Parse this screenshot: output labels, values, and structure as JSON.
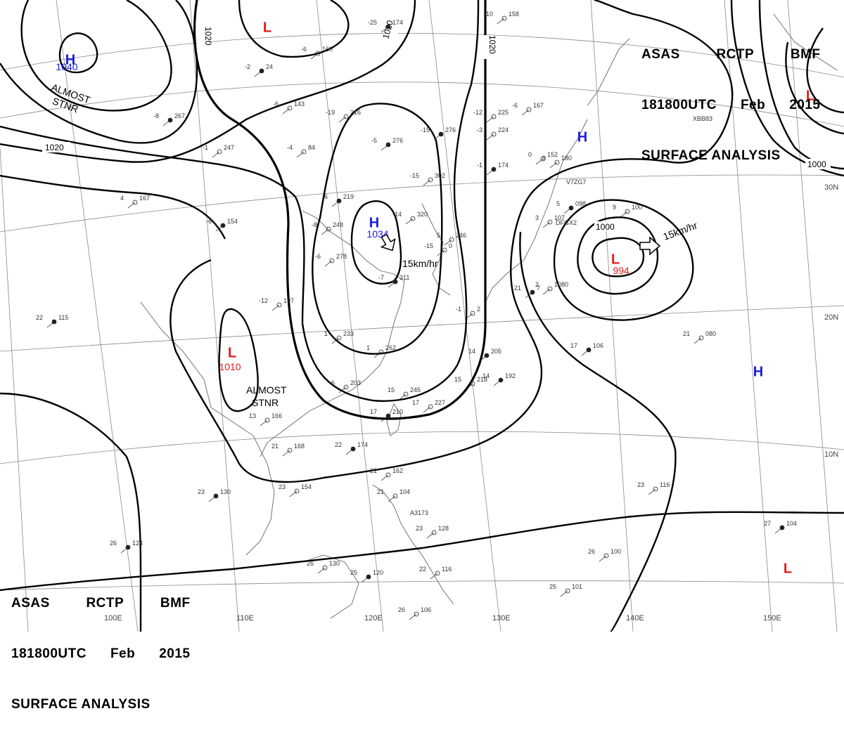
{
  "title": {
    "product": "ASAS",
    "station": "RCTP",
    "agency": "BMF",
    "valid_time": "181800UTC",
    "month": "Feb",
    "year": "2015",
    "analysis": "SURFACE ANALYSIS"
  },
  "colors": {
    "high": "#1a1ae6",
    "low": "#e61a1a",
    "isobar": "#000000",
    "grid": "#777777",
    "coast": "#555555"
  },
  "icons": {
    "high": "H-letter",
    "low": "L-letter",
    "motion": "hollow-arrow-icon"
  },
  "longitude_labels": [
    "100E",
    "110E",
    "120E",
    "130E",
    "140E",
    "150E"
  ],
  "latitude_labels": [
    "30N",
    "20N",
    "10N"
  ],
  "isobar_labels": [
    "1020",
    "1020",
    "1020",
    "1020",
    "1000",
    "1000"
  ],
  "centers": [
    {
      "type": "H",
      "label": "H",
      "pressure": "1040",
      "note": "ALMOST STNR"
    },
    {
      "type": "L",
      "label": "L",
      "pressure": ""
    },
    {
      "type": "H",
      "label": "H",
      "pressure": "1034",
      "motion": "15km/hr"
    },
    {
      "type": "L",
      "label": "L",
      "pressure": "1010",
      "note": "ALMOST STNR"
    },
    {
      "type": "H",
      "label": "H",
      "pressure": ""
    },
    {
      "type": "L",
      "label": "L",
      "pressure": "994",
      "motion": "15km/hr"
    },
    {
      "type": "L",
      "label": "L",
      "pressure": ""
    },
    {
      "type": "H",
      "label": "H",
      "pressure": ""
    },
    {
      "type": "L",
      "label": "L",
      "pressure": ""
    }
  ],
  "stations": [
    {
      "t": "-25",
      "p": "174"
    },
    {
      "t": "-10",
      "p": "158"
    },
    {
      "t": "-6",
      "p": "160"
    },
    {
      "t": "-2",
      "p": "24"
    },
    {
      "t": "-6",
      "p": "143"
    },
    {
      "t": "-19",
      "p": "216"
    },
    {
      "t": "-15",
      "p": "276"
    },
    {
      "t": "-12",
      "p": "225"
    },
    {
      "t": "-6",
      "p": "167"
    },
    {
      "t": "-8",
      "p": "267"
    },
    {
      "t": "-1",
      "p": "247"
    },
    {
      "t": "-4",
      "p": "84"
    },
    {
      "t": "-5",
      "p": "276"
    },
    {
      "t": "-3",
      "p": "224"
    },
    {
      "t": "0",
      "p": "152"
    },
    {
      "t": "-6",
      "p": "219"
    },
    {
      "t": "-15",
      "p": "302"
    },
    {
      "t": "-14",
      "p": "320"
    },
    {
      "t": "-1",
      "p": "174"
    },
    {
      "t": "9",
      "p": "180"
    },
    {
      "t": "-8",
      "p": "248"
    },
    {
      "t": "5",
      "p": "098"
    },
    {
      "t": "9",
      "p": "100"
    },
    {
      "t": "3",
      "p": "107"
    },
    {
      "t": "-6",
      "p": "154"
    },
    {
      "t": "4",
      "p": "167"
    },
    {
      "t": "-6",
      "p": "278"
    },
    {
      "t": "-7",
      "p": "311"
    },
    {
      "t": "5",
      "p": "246"
    },
    {
      "t": "-15",
      "p": "0"
    },
    {
      "t": "21",
      "p": "7"
    },
    {
      "t": "2",
      "p": "1080"
    },
    {
      "t": "-1",
      "p": "2"
    },
    {
      "t": "22",
      "p": "115"
    },
    {
      "t": "-12",
      "p": "197"
    },
    {
      "t": "1",
      "p": "233"
    },
    {
      "t": "14",
      "p": "205"
    },
    {
      "t": "1",
      "p": "262"
    },
    {
      "t": "21",
      "p": "080"
    },
    {
      "t": "17",
      "p": "106"
    },
    {
      "t": "6",
      "p": "203"
    },
    {
      "t": "15",
      "p": "218"
    },
    {
      "t": "14",
      "p": "192"
    },
    {
      "t": "15",
      "p": "245"
    },
    {
      "t": "17",
      "p": "227"
    },
    {
      "t": "17",
      "p": "210"
    },
    {
      "t": "13",
      "p": "166"
    },
    {
      "t": "21",
      "p": "168"
    },
    {
      "t": "22",
      "p": "174"
    },
    {
      "t": "21",
      "p": "162"
    },
    {
      "t": "23",
      "p": "154"
    },
    {
      "t": "23",
      "p": "130"
    },
    {
      "t": "21",
      "p": "104"
    },
    {
      "t": "23",
      "p": "116"
    },
    {
      "t": "26",
      "p": "124"
    },
    {
      "t": "23",
      "p": "128"
    },
    {
      "t": "26",
      "p": "130"
    },
    {
      "t": "25",
      "p": "120"
    },
    {
      "t": "22",
      "p": "116"
    },
    {
      "t": "26",
      "p": "100"
    },
    {
      "t": "27",
      "p": "104"
    },
    {
      "t": "25",
      "p": "101"
    },
    {
      "t": "26",
      "p": "106"
    }
  ],
  "ship_callsigns": [
    "XBB83",
    "V7ZG7",
    "DFGX2",
    "A3173"
  ]
}
